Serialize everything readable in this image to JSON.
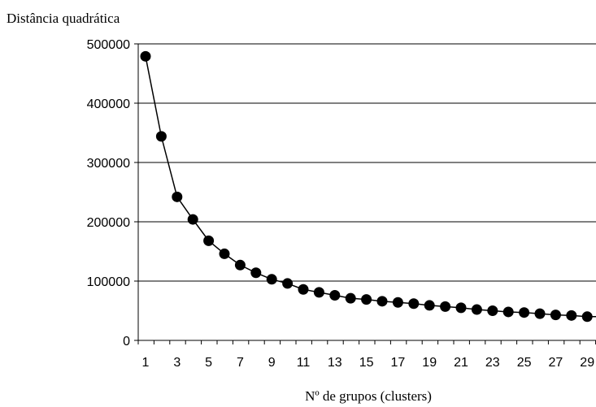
{
  "chart_data": {
    "type": "line",
    "ylabel": "Distância quadrática",
    "xlabel": "Nº de grupos (clusters)",
    "ylim": [
      0,
      500000
    ],
    "yticks": [
      0,
      100000,
      200000,
      300000,
      400000,
      500000
    ],
    "ytick_labels": [
      "0",
      "100000",
      "200000",
      "300000",
      "400000",
      "500000"
    ],
    "xlim": [
      1,
      30
    ],
    "xtick_labels": [
      "1",
      "3",
      "5",
      "7",
      "9",
      "11",
      "13",
      "15",
      "17",
      "19",
      "21",
      "23",
      "25",
      "27",
      "29"
    ],
    "grid": "horizontal",
    "legend": "none",
    "colors": {
      "line": "#000000",
      "marker": "#000000",
      "grid": "#000000"
    },
    "series": [
      {
        "x": [
          1,
          2,
          3,
          4,
          5,
          6,
          7,
          8,
          9,
          10,
          11,
          12,
          13,
          14,
          15,
          16,
          17,
          18,
          19,
          20,
          21,
          22,
          23,
          24,
          25,
          26,
          27,
          28,
          29,
          30
        ],
        "values": [
          479000,
          344000,
          242000,
          204000,
          168000,
          146000,
          127000,
          114000,
          103000,
          96000,
          86000,
          81000,
          76000,
          71000,
          69000,
          66000,
          64000,
          62000,
          59000,
          57000,
          55000,
          52000,
          50000,
          48000,
          47000,
          45000,
          43000,
          42000,
          40000,
          40000
        ]
      }
    ]
  }
}
